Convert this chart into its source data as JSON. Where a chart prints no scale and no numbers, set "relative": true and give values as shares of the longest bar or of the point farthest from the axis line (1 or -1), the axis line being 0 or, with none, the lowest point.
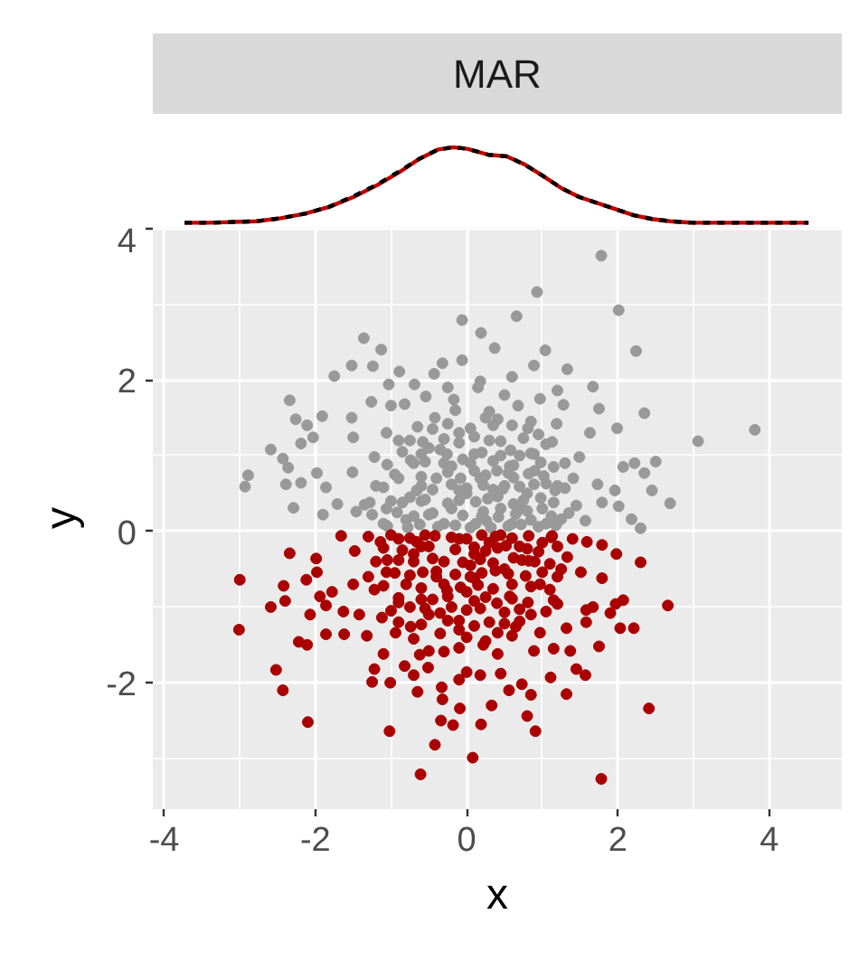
{
  "chart_data": [
    {
      "type": "line",
      "title": "MAR",
      "relative": true,
      "xlim": [
        -4.15,
        4.96
      ],
      "tick_labels": false,
      "series": [
        {
          "color": "#c00000",
          "line_style": "solid",
          "x": [
            -3.73,
            -3.41,
            -3.1,
            -2.78,
            -2.46,
            -2.14,
            -1.82,
            -1.5,
            -1.18,
            -0.86,
            -0.62,
            -0.38,
            -0.18,
            0.01,
            0.29,
            0.53,
            0.77,
            1.01,
            1.25,
            1.49,
            1.73,
            1.97,
            2.21,
            2.45,
            2.69,
            3.0,
            4.52
          ],
          "values": [
            0,
            0,
            0.01,
            0.02,
            0.06,
            0.12,
            0.21,
            0.34,
            0.5,
            0.69,
            0.85,
            0.97,
            1.0,
            0.98,
            0.9,
            0.88,
            0.77,
            0.62,
            0.46,
            0.34,
            0.26,
            0.18,
            0.1,
            0.05,
            0.02,
            0,
            0
          ]
        },
        {
          "color": "#000000",
          "line_style": "dashed",
          "x": [
            -3.73,
            -3.41,
            -3.1,
            -2.78,
            -2.46,
            -2.14,
            -1.82,
            -1.5,
            -1.18,
            -0.86,
            -0.62,
            -0.38,
            -0.18,
            0.01,
            0.29,
            0.53,
            0.77,
            1.01,
            1.25,
            1.49,
            1.73,
            1.97,
            2.21,
            2.45,
            2.69,
            3.0,
            4.52
          ],
          "values": [
            0,
            0,
            0.01,
            0.02,
            0.06,
            0.12,
            0.21,
            0.35,
            0.51,
            0.7,
            0.85,
            0.97,
            1.0,
            0.98,
            0.9,
            0.88,
            0.77,
            0.62,
            0.46,
            0.34,
            0.26,
            0.18,
            0.1,
            0.05,
            0.02,
            0,
            0
          ]
        }
      ]
    },
    {
      "type": "scatter",
      "xlabel": "x",
      "ylabel": "y",
      "xlim": [
        -4.15,
        4.96
      ],
      "ylim": [
        -3.67,
        4.02
      ],
      "xticks": [
        -4,
        -2,
        0,
        2,
        4
      ],
      "yticks": [
        -2,
        0,
        2,
        4
      ],
      "grid": true,
      "marker": "circle",
      "series": [
        {
          "color": "#999999",
          "x": [
            -0.06,
            0.19,
            -1.36,
            -1.13,
            -1.52,
            -1.24,
            -1.75,
            -0.89,
            -0.32,
            -0.06,
            -2.34,
            -1.03,
            -0.69,
            -0.43,
            -2.26,
            -2.11,
            -1.91,
            -2.03,
            -2.19,
            -2.59,
            -2.43,
            -2.36,
            -2.89,
            -2.93,
            -2.39,
            -2.19,
            -2.29,
            -1.98,
            -1.86,
            -1.71,
            -1.9,
            -1.52,
            -1.26,
            -0.82,
            -0.54,
            -0.17,
            -1.51,
            -1.46,
            -1.28,
            -1.5,
            -1.22,
            -1.06,
            -1.0,
            -0.58,
            -0.9,
            -1.06,
            -0.66,
            -0.42,
            -0.26,
            -0.74,
            -0.1,
            -0.5,
            0.37,
            0.18,
            0.3,
            1.78,
            0.93,
            2.01,
            0.66,
            2.24,
            1.04,
            0.89,
            1.33,
            0.6,
            1.67,
            1.2,
            0.97,
            2.35,
            1.75,
            1.28,
            0.68,
            3.81,
            3.06,
            1.99,
            1.63,
            1.19,
            0.81,
            0.41,
            2.5,
            2.07,
            2.35,
            2.45,
            2.69,
            2.22,
            1.73,
            1.96,
            1.79,
            2.01,
            2.18,
            2.3,
            1.49,
            1.41,
            1.17,
            1.45,
            1.25,
            1.57,
            1.13,
            0.89,
            0.57,
            0.89,
            0.41,
            0.73,
            0.26,
            1.05,
            0.1,
            0.18,
            -0.8,
            -0.6,
            -0.4,
            -0.2,
            0.0,
            0.2,
            0.4,
            0.6,
            0.8,
            1.0,
            -0.7,
            -0.5,
            -0.3,
            -0.1,
            0.1,
            0.3,
            0.5,
            0.7,
            0.9,
            -0.9,
            -1.2,
            -1.1,
            -0.3,
            0.05,
            0.45,
            0.85,
            1.2,
            1.3,
            -0.15,
            0.25,
            0.6,
            -0.45,
            -0.75,
            0.35,
            -0.05,
            1.05,
            -1.35,
            0.15,
            -0.25,
            0.5,
            -1.05,
            -0.78,
            -0.62,
            -0.38,
            -0.15,
            0.12,
            0.32,
            0.55,
            0.72,
            0.95,
            1.18,
            -1.25,
            -0.92,
            -0.7,
            -0.45,
            -0.05,
            0.22,
            0.42,
            0.65,
            0.8,
            1.12,
            1.35,
            -1.0,
            -0.85,
            -0.55,
            -0.25,
            -0.1,
            0.12,
            0.28,
            0.62,
            0.75,
            0.98,
            1.15,
            -1.1,
            -0.6,
            -0.45,
            -0.2,
            0.0,
            0.22,
            0.48,
            0.7,
            1.05,
            1.3,
            -0.95,
            -0.6,
            -0.25,
            -0.08,
            0.25,
            0.55,
            0.62,
            0.82,
            1.02,
            -1.05,
            -0.55,
            -0.2,
            0.05,
            0.35,
            0.62,
            0.98,
            1.15,
            -0.85,
            -0.6,
            -0.35,
            0.2,
            0.45,
            0.58,
            0.85,
            -0.75,
            -0.3,
            -0.1,
            0.1,
            0.45,
            0.75,
            0.95,
            -0.65,
            -0.25,
            0.05,
            0.35,
            0.85
          ],
          "values": [
            2.79,
            2.62,
            2.55,
            2.4,
            2.19,
            2.18,
            2.05,
            2.11,
            2.22,
            2.26,
            1.73,
            1.94,
            1.94,
            2.08,
            1.48,
            1.4,
            1.52,
            1.24,
            1.16,
            1.08,
            0.96,
            0.84,
            0.74,
            0.59,
            0.62,
            0.64,
            0.31,
            0.77,
            0.58,
            0.36,
            0.22,
            1.5,
            1.71,
            1.68,
            1.78,
            1.74,
            0.78,
            0.26,
            0.38,
            1.24,
            0.98,
            1.3,
            1.66,
            1.18,
            0.7,
            0.3,
            0.54,
            1.5,
            1.02,
            0.94,
            0.54,
            0.22,
            2.42,
            1.98,
            1.58,
            3.64,
            3.16,
            2.92,
            2.84,
            2.38,
            2.39,
            2.19,
            2.14,
            2.04,
            1.91,
            1.86,
            1.75,
            1.56,
            1.62,
            1.67,
            1.66,
            1.34,
            1.19,
            1.36,
            1.3,
            1.42,
            1.36,
            1.48,
            0.92,
            0.85,
            0.77,
            0.54,
            0.37,
            0.9,
            0.62,
            0.54,
            0.38,
            0.33,
            0.16,
            0.04,
            0.98,
            0.7,
            0.54,
            0.34,
            0.16,
            0.14,
            1.18,
            1.02,
            0.86,
            0.62,
            0.46,
            0.3,
            0.14,
            0.1,
            1.02,
            0.7,
            0.15,
            0.4,
            0.7,
            0.3,
            0.5,
            0.2,
            0.8,
            0.1,
            0.5,
            0.3,
            0.9,
            1.1,
            0.9,
            1.3,
            0.8,
            1.2,
            0.6,
            1.0,
            0.8,
            1.2,
            0.6,
            0.1,
            0.1,
            0.05,
            0.3,
            0.15,
            0.6,
            0.9,
            1.6,
            1.5,
            1.4,
            1.35,
            0.45,
            0.55,
            0.95,
            1.15,
            0.35,
            1.9,
            1.9,
            1.8,
            0.07,
            0.05,
            0.09,
            0.06,
            0.08,
            0.1,
            0.05,
            0.07,
            0.09,
            0.06,
            0.08,
            0.22,
            0.25,
            0.2,
            0.24,
            0.21,
            0.26,
            0.19,
            0.23,
            0.27,
            0.2,
            0.24,
            0.4,
            0.38,
            0.42,
            0.37,
            0.41,
            0.39,
            0.43,
            0.36,
            0.41,
            0.44,
            0.38,
            0.58,
            0.6,
            0.55,
            0.62,
            0.57,
            0.61,
            0.56,
            0.59,
            0.63,
            0.57,
            0.75,
            0.72,
            0.78,
            0.7,
            0.74,
            0.77,
            0.71,
            0.76,
            0.73,
            0.88,
            0.92,
            0.86,
            0.9,
            0.93,
            0.87,
            0.91,
            0.85,
            1.05,
            1.02,
            1.08,
            1.04,
            1.0,
            1.07,
            1.03,
            1.2,
            1.22,
            1.17,
            1.25,
            1.19,
            1.23,
            1.28,
            1.38,
            1.42,
            1.36,
            1.4,
            1.45
          ]
        },
        {
          "color": "#aa0000",
          "x": [
            -3.0,
            -3.01,
            -2.34,
            -2.42,
            -2.4,
            -2.59,
            -2.52,
            -2.43,
            -2.1,
            -2.22,
            -2.11,
            -2.07,
            -2.12,
            -1.98,
            -1.99,
            -1.94,
            -1.86,
            -1.78,
            -1.86,
            -1.66,
            -1.63,
            -1.62,
            -1.5,
            -1.42,
            -1.32,
            -1.22,
            -1.48,
            -1.22,
            -1.25,
            -1.01,
            -1.02,
            -1.1,
            -0.94,
            -1.12,
            -0.9,
            -0.74,
            -0.61,
            -0.42,
            -0.65,
            -0.7,
            -0.51,
            -0.33,
            -0.32,
            -0.34,
            -0.18,
            -0.09,
            0.08,
            0.19,
            0.18,
            -0.1,
            0.0,
            -0.1,
            -0.3,
            -0.5,
            -0.62,
            -0.82,
            0.33,
            -0.9,
            -0.58,
            -0.26,
            -0.5,
            -0.1,
            0.22,
            -1.06,
            -0.66,
            -1.14,
            1.78,
            0.91,
            0.8,
            2.41,
            1.32,
            0.85,
            0.56,
            0.73,
            1.11,
            1.57,
            1.45,
            0.45,
            1.75,
            1.15,
            0.89,
            1.37,
            0.41,
            1.32,
            1.58,
            2.03,
            2.21,
            0.97,
            0.65,
            1.2,
            1.58,
            1.9,
            2.07,
            1.97,
            2.66,
            1.67,
            2.3,
            1.98,
            1.79,
            1.51,
            1.79,
            1.59,
            1.33,
            1.13,
            0.97,
            0.81,
            0.41,
            0.18,
            0.57,
            0.73,
            0.41,
            0.1,
            -0.9,
            -0.7,
            -0.5,
            -0.3,
            -0.1,
            0.1,
            0.3,
            0.5,
            0.7,
            0.9,
            -0.8,
            -0.6,
            -0.4,
            -0.2,
            0.0,
            0.2,
            0.4,
            0.6,
            0.85,
            -0.1,
            -0.35,
            0.3,
            -0.75,
            0.05,
            -0.55,
            0.45,
            1.0,
            -1.2,
            -1.3,
            1.25,
            -1.3,
            -1.0,
            -0.75,
            -0.42,
            -0.2,
            0.0,
            0.2,
            0.38,
            0.6,
            0.82,
            1.12,
            1.4,
            -1.1,
            -0.85,
            -0.6,
            -0.15,
            0.1,
            0.25,
            0.52,
            0.8,
            0.95,
            1.2,
            -1.05,
            -0.7,
            -0.45,
            -0.05,
            0.18,
            0.35,
            0.62,
            0.82,
            1.1,
            -0.95,
            -0.75,
            -0.4,
            -0.15,
            0.05,
            0.38,
            0.55,
            0.78,
            1.0,
            1.2,
            -1.1,
            -0.6,
            -0.3,
            -0.08,
            0.15,
            0.35,
            0.85,
            1.1,
            -0.9,
            -0.45,
            -0.25,
            0.1,
            0.25,
            0.6,
            1.15,
            -1.0,
            -0.55,
            -0.35,
            0.0,
            0.5,
            0.7,
            1.05,
            -0.9,
            -0.6,
            -0.25,
            0.1,
            0.5,
            0.7,
            -0.7,
            0.0,
            0.25,
            0.6
          ],
          "values": [
            -0.64,
            -1.3,
            -0.29,
            -0.72,
            -0.92,
            -1.0,
            -1.83,
            -2.1,
            -2.52,
            -1.46,
            -1.5,
            -1.1,
            -0.64,
            -0.54,
            -0.36,
            -0.86,
            -1.36,
            -0.8,
            -0.98,
            -0.06,
            -1.06,
            -1.36,
            -0.7,
            -1.1,
            -1.38,
            -0.77,
            -0.26,
            -1.82,
            -1.99,
            -2.0,
            -2.64,
            -1.62,
            -1.34,
            -1.14,
            -0.94,
            -1.26,
            -3.21,
            -2.82,
            -2.12,
            -1.9,
            -1.8,
            -2.06,
            -2.22,
            -2.5,
            -2.56,
            -2.34,
            -2.99,
            -2.55,
            -1.9,
            -1.96,
            -1.86,
            -1.54,
            -1.59,
            -1.58,
            -1.63,
            -1.78,
            -2.3,
            -0.38,
            -0.54,
            -0.78,
            -1.1,
            -1.18,
            -1.5,
            -0.54,
            -0.14,
            -0.14,
            -3.27,
            -2.64,
            -2.44,
            -2.34,
            -2.15,
            -2.16,
            -2.1,
            -2.02,
            -1.93,
            -1.9,
            -1.82,
            -1.88,
            -1.52,
            -1.55,
            -1.58,
            -1.58,
            -1.62,
            -1.28,
            -1.2,
            -1.28,
            -1.28,
            -1.34,
            -1.26,
            -0.96,
            -1.04,
            -1.08,
            -0.91,
            -0.96,
            -0.98,
            -1.0,
            -0.41,
            -0.3,
            -0.62,
            -0.54,
            -0.18,
            -0.14,
            -0.34,
            -0.06,
            -0.7,
            -0.94,
            -1.34,
            -1.02,
            -0.86,
            -0.38,
            -0.22,
            -0.62,
            -0.1,
            -0.3,
            -0.2,
            -0.4,
            -0.1,
            -0.3,
            -0.15,
            -0.5,
            -0.2,
            -0.4,
            -0.7,
            -0.9,
            -0.6,
            -1.0,
            -0.8,
            -0.55,
            -0.95,
            -0.7,
            -1.1,
            -1.3,
            -1.35,
            -1.2,
            -1.0,
            -0.45,
            -0.05,
            -0.05,
            -0.15,
            -0.4,
            -0.6,
            -0.5,
            -0.07,
            -0.05,
            -0.09,
            -0.06,
            -0.08,
            -0.1,
            -0.05,
            -0.07,
            -0.09,
            -0.06,
            -0.08,
            -0.1,
            -0.22,
            -0.25,
            -0.2,
            -0.24,
            -0.21,
            -0.26,
            -0.19,
            -0.23,
            -0.27,
            -0.2,
            -0.38,
            -0.4,
            -0.36,
            -0.41,
            -0.37,
            -0.42,
            -0.35,
            -0.39,
            -0.43,
            -0.55,
            -0.58,
            -0.53,
            -0.57,
            -0.6,
            -0.52,
            -0.56,
            -0.59,
            -0.54,
            -0.6,
            -0.72,
            -0.75,
            -0.7,
            -0.74,
            -0.71,
            -0.76,
            -0.73,
            -0.77,
            -0.88,
            -0.9,
            -0.86,
            -0.92,
            -0.87,
            -0.89,
            -0.91,
            -1.05,
            -1.02,
            -1.08,
            -1.04,
            -1.07,
            -1.03,
            -1.06,
            -1.2,
            -1.23,
            -1.18,
            -1.25,
            -1.22,
            -1.19,
            -1.42,
            -1.4,
            -1.45,
            -1.38
          ]
        }
      ]
    }
  ]
}
